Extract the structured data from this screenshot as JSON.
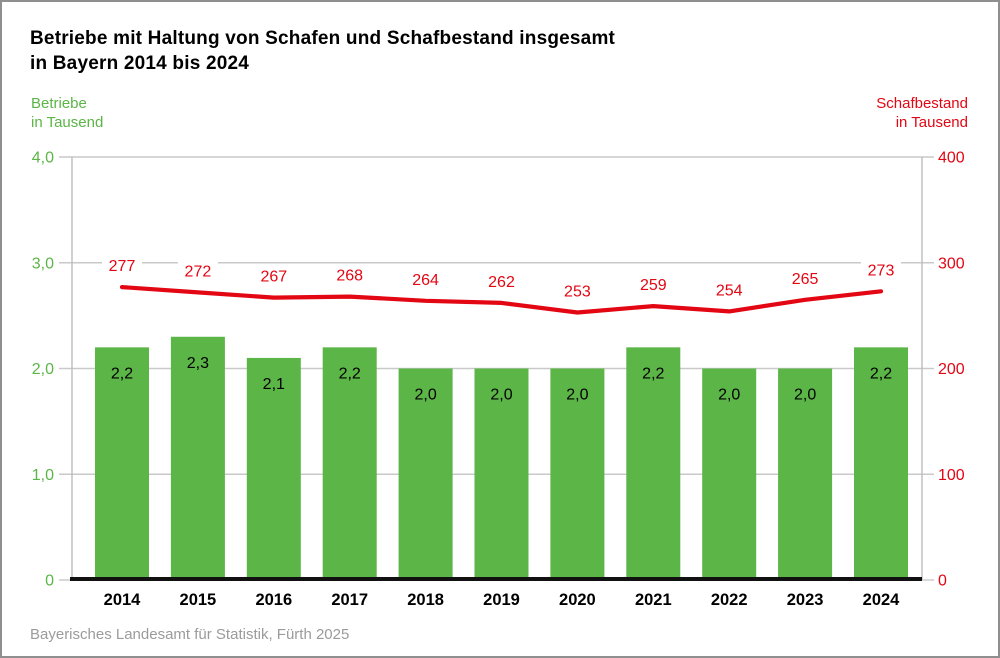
{
  "title": {
    "line1": "Betriebe mit Haltung von Schafen und Schafbestand insgesamt",
    "line2": "in Bayern 2014 bis 2024"
  },
  "left_axis": {
    "title_lines": [
      "Betriebe",
      "in Tausend"
    ],
    "tick_labels": [
      "4,0",
      "3,0",
      "2,0",
      "1,0",
      "0"
    ],
    "color": "#5bb547"
  },
  "right_axis": {
    "title_lines": [
      "Schafbestand",
      "in Tausend"
    ],
    "tick_labels": [
      "400",
      "300",
      "200",
      "100",
      "0"
    ],
    "color": "#e30613"
  },
  "footer": {
    "source": "Bayerisches Landesamt für Statistik, Fürth 2025"
  },
  "chart_data": {
    "type": "bar",
    "subtype": "bar-and-line-combo",
    "title": "Betriebe mit Haltung von Schafen und Schafbestand insgesamt in Bayern 2014 bis 2024",
    "categories": [
      "2014",
      "2015",
      "2016",
      "2017",
      "2018",
      "2019",
      "2020",
      "2021",
      "2022",
      "2023",
      "2024"
    ],
    "series": [
      {
        "name": "Betriebe in Tausend",
        "type": "bar",
        "axis": "left",
        "color": "#5bb547",
        "values": [
          2.2,
          2.3,
          2.1,
          2.2,
          2.0,
          2.0,
          2.0,
          2.2,
          2.0,
          2.0,
          2.2
        ],
        "labels": [
          "2,2",
          "2,3",
          "2,1",
          "2,2",
          "2,0",
          "2,0",
          "2,0",
          "2,2",
          "2,0",
          "2,0",
          "2,2"
        ],
        "label_color": "#000000"
      },
      {
        "name": "Schafbestand in Tausend",
        "type": "line",
        "axis": "right",
        "color": "#e30613",
        "values": [
          277,
          272,
          267,
          268,
          264,
          262,
          253,
          259,
          254,
          265,
          273
        ],
        "labels": [
          "277",
          "272",
          "267",
          "268",
          "264",
          "262",
          "253",
          "259",
          "254",
          "265",
          "273"
        ],
        "label_color": "#e30613"
      }
    ],
    "left_ylim": [
      0,
      4
    ],
    "left_tick_step": 1,
    "right_ylim": [
      0,
      400
    ],
    "right_tick_step": 100,
    "grid": true,
    "legend_position": "none",
    "grid_color": "#c9c9c9",
    "axis_color": "#bdbdbd",
    "baseline_color": "#111111",
    "category_label_color": "#000000"
  }
}
